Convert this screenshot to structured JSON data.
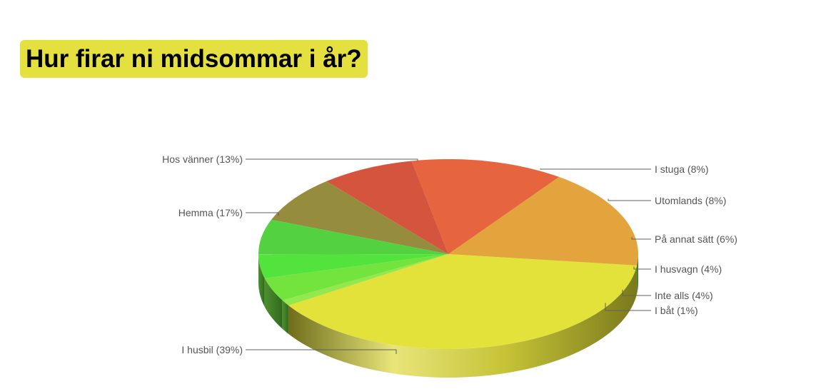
{
  "title": "Hur firar ni midsommar i år?",
  "chart_data": {
    "type": "pie",
    "style": "3d",
    "title": "Hur firar ni midsommar i år?",
    "slices": [
      {
        "label": "I husbil (39%)",
        "value": 39,
        "color": "#e3e23b"
      },
      {
        "label": "Hemma (17%)",
        "value": 17,
        "color": "#e3a43e"
      },
      {
        "label": "Hos vänner (13%)",
        "value": 13,
        "color": "#e6653e"
      },
      {
        "label": "I stuga (8%)",
        "value": 8,
        "color": "#d4543d"
      },
      {
        "label": "Utomlands (8%)",
        "value": 8,
        "color": "#958c3e"
      },
      {
        "label": "På annat sätt (6%)",
        "value": 6,
        "color": "#53d140"
      },
      {
        "label": "I husvagn (4%)",
        "value": 4,
        "color": "#52e33d"
      },
      {
        "label": "Inte alls (4%)",
        "value": 4,
        "color": "#73e33d"
      },
      {
        "label": "I båt (1%)",
        "value": 1,
        "color": "#92e84d"
      }
    ]
  }
}
